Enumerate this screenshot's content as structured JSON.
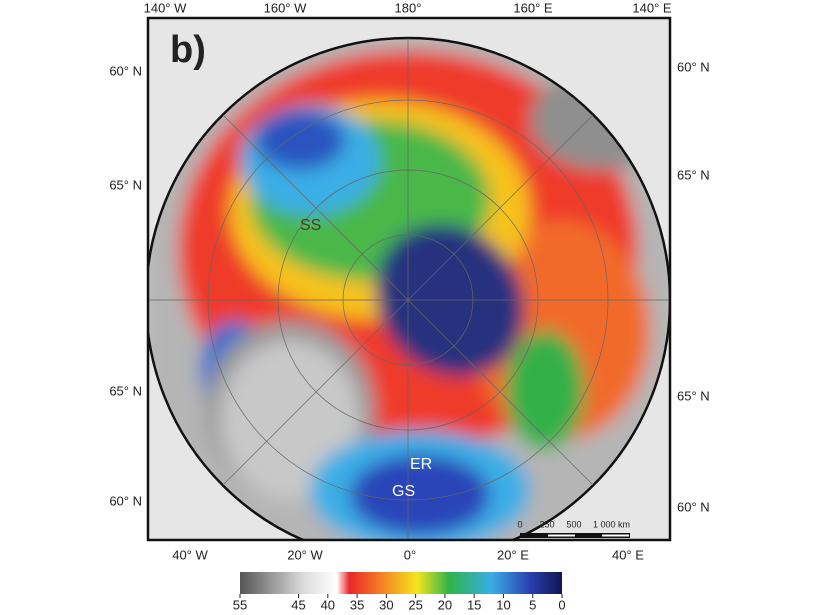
{
  "panel_label": "b)",
  "graticule": {
    "top": [
      "140° W",
      "160° W",
      "180°",
      "160° E",
      "140° E"
    ],
    "bottom": [
      "40° W",
      "20° W",
      "0°",
      "20° E",
      "40° E"
    ],
    "left": [
      "60° N",
      "65° N",
      "65° N",
      "60° N"
    ],
    "right": [
      "60° N",
      "65° N",
      "65° N",
      "60° N"
    ]
  },
  "regions": [
    "SS",
    "ER",
    "GS"
  ],
  "scale_bar": [
    "0",
    "250",
    "500",
    "1 000 km"
  ],
  "colorbar": {
    "lim": [
      55,
      0
    ],
    "ticks": [
      55,
      45,
      40,
      35,
      30,
      25,
      20,
      15,
      10,
      5,
      0
    ]
  }
}
